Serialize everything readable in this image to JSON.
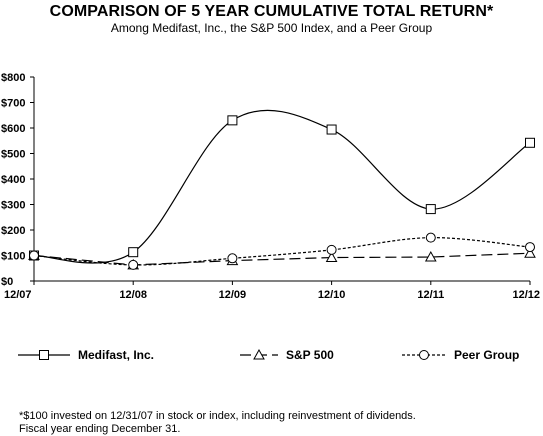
{
  "chart_data": {
    "type": "line",
    "title": "COMPARISON OF 5 YEAR CUMULATIVE TOTAL RETURN*",
    "subtitle": "Among Medifast, Inc., the S&P 500 Index, and a Peer Group",
    "categories": [
      "12/07",
      "12/08",
      "12/09",
      "12/10",
      "12/11",
      "12/12"
    ],
    "ylim": [
      0,
      800
    ],
    "yticks": [
      0,
      100,
      200,
      300,
      400,
      500,
      600,
      700,
      800
    ],
    "ytick_labels": [
      "$0",
      "$100",
      "$200",
      "$300",
      "$400",
      "$500",
      "$600",
      "$700",
      "$800"
    ],
    "grid": false,
    "legend_position": "bottom",
    "series": [
      {
        "name": "Medifast, Inc.",
        "values": [
          100,
          113,
          630,
          594,
          282,
          542
        ],
        "marker": "square",
        "dash": "solid",
        "smooth": true,
        "color": "#000000"
      },
      {
        "name": "S&P 500",
        "values": [
          100,
          63,
          80,
          92,
          94,
          109
        ],
        "marker": "triangle",
        "dash": "long-dash",
        "smooth": false,
        "color": "#000000"
      },
      {
        "name": "Peer Group",
        "values": [
          100,
          63,
          89,
          122,
          170,
          133
        ],
        "marker": "circle",
        "dash": "short-dash",
        "smooth": true,
        "color": "#000000"
      }
    ]
  },
  "footnote": {
    "line1": "*$100 invested on 12/31/07 in stock or index, including reinvestment of dividends.",
    "line2": "Fiscal year ending December 31."
  }
}
